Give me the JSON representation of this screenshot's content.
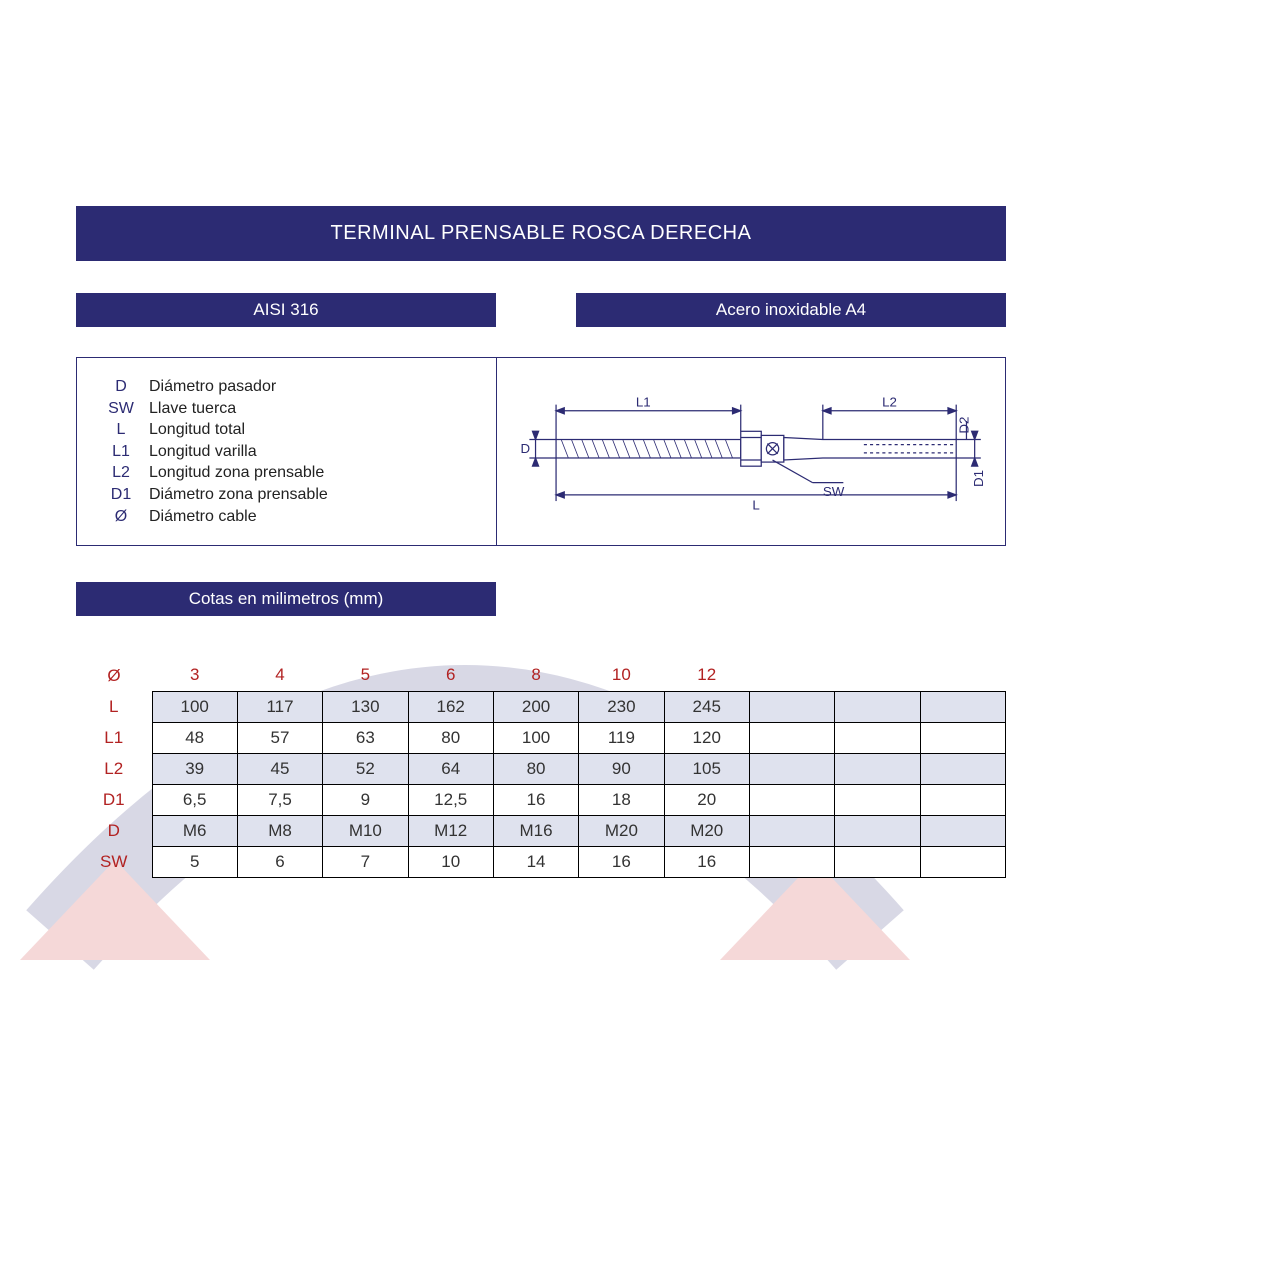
{
  "title": "TERMINAL PRENSABLE ROSCA DERECHA",
  "material_left": "AISI 316",
  "material_right": "Acero inoxidable A4",
  "units_label": "Cotas en milimetros (mm)",
  "colors": {
    "bar_bg": "#2c2b73",
    "bar_text": "#ffffff",
    "row_label": "#b22222",
    "col_head": "#b22222",
    "cell_text": "#333333",
    "cell_border": "#000000",
    "row_odd_bg": "#dfe2ee",
    "row_even_bg": "#ffffff",
    "legend_sym": "#2c2b73",
    "legend_desc": "#222222",
    "page_bg": "#ffffff"
  },
  "typography": {
    "title_fontsize": 20,
    "subbar_fontsize": 17,
    "legend_fontsize": 16,
    "table_fontsize": 17,
    "font_family": "Arial"
  },
  "legend": [
    {
      "sym": "D",
      "desc": "Diámetro pasador"
    },
    {
      "sym": "SW",
      "desc": "Llave tuerca"
    },
    {
      "sym": "L",
      "desc": "Longitud total"
    },
    {
      "sym": "L1",
      "desc": "Longitud varilla"
    },
    {
      "sym": "L2",
      "desc": "Longitud zona prensable"
    },
    {
      "sym": "D1",
      "desc": "Diámetro zona prensable"
    },
    {
      "sym": "Ø",
      "desc": "Diámetro cable"
    }
  ],
  "diagram_labels": {
    "L1": "L1",
    "L2": "L2",
    "L": "L",
    "D": "D",
    "D1": "D1",
    "D2": "D2",
    "SW": "SW"
  },
  "table": {
    "type": "table",
    "n_data_cols": 7,
    "n_blank_cols": 3,
    "col_headers": [
      "3",
      "4",
      "5",
      "6",
      "8",
      "10",
      "12"
    ],
    "header_symbol": "Ø",
    "rows": [
      {
        "label": "L",
        "cells": [
          "100",
          "117",
          "130",
          "162",
          "200",
          "230",
          "245"
        ]
      },
      {
        "label": "L1",
        "cells": [
          "48",
          "57",
          "63",
          "80",
          "100",
          "119",
          "120"
        ]
      },
      {
        "label": "L2",
        "cells": [
          "39",
          "45",
          "52",
          "64",
          "80",
          "90",
          "105"
        ]
      },
      {
        "label": "D1",
        "cells": [
          "6,5",
          "7,5",
          "9",
          "12,5",
          "16",
          "18",
          "20"
        ]
      },
      {
        "label": "D",
        "cells": [
          "M6",
          "M8",
          "M10",
          "M12",
          "M16",
          "M20",
          "M20"
        ]
      },
      {
        "label": "SW",
        "cells": [
          "5",
          "6",
          "7",
          "10",
          "14",
          "16",
          "16"
        ]
      }
    ]
  }
}
